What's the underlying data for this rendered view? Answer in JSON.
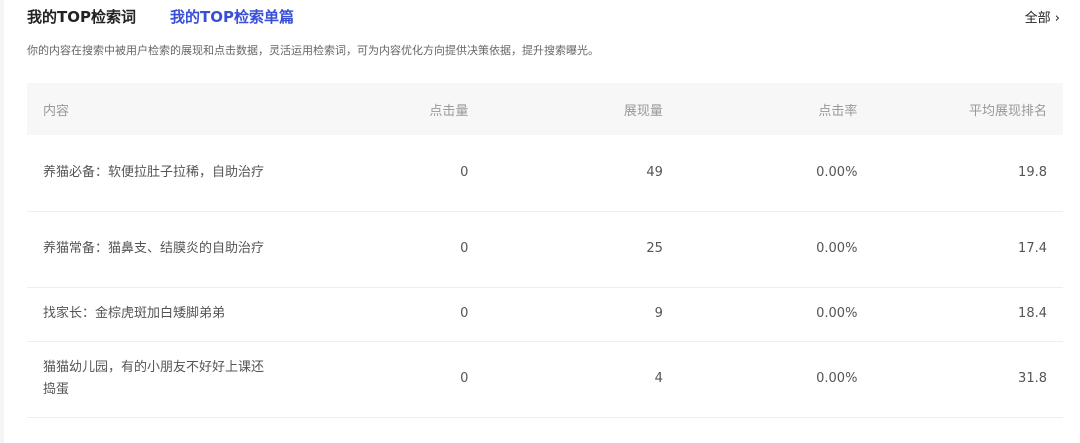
{
  "tabs": [
    {
      "label": "我的TOP检索词",
      "active": false
    },
    {
      "label": "我的TOP检索单篇",
      "active": true
    }
  ],
  "all_link": "全部 ›",
  "description": "你的内容在搜索中被用户检索的展现和点击数据，灵活运用检索词，可为内容优化方向提供决策依据，提升搜索曝光。",
  "table": {
    "headers": [
      "内容",
      "点击量",
      "展现量",
      "点击率",
      "平均展现排名"
    ],
    "rows": [
      [
        "养猫必备：软便拉肚子拉稀，自助治疗",
        "0",
        "49",
        "0.00%",
        "19.8"
      ],
      [
        "养猫常备：猫鼻支、结膜炎的自助治疗",
        "0",
        "25",
        "0.00%",
        "17.4"
      ],
      [
        "找家长：金棕虎斑加白矮脚弟弟",
        "0",
        "9",
        "0.00%",
        "18.4"
      ],
      [
        "猫猫幼儿园，有的小朋友不好好上课还捣蛋",
        "0",
        "4",
        "0.00%",
        "31.8"
      ]
    ]
  },
  "colors": {
    "accent": "#3a4fd8"
  }
}
